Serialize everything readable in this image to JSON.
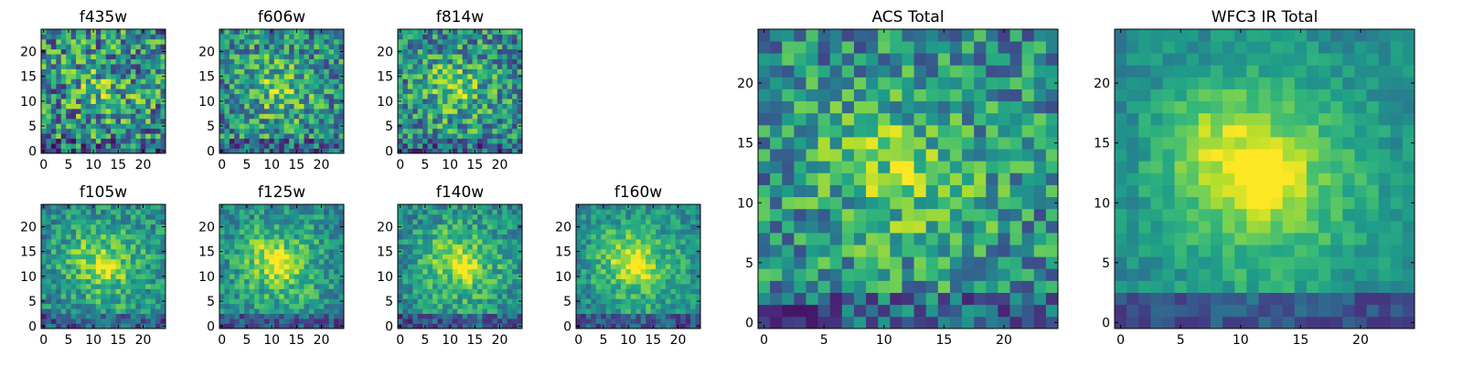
{
  "colormap": "viridis",
  "colors": {
    "frame": "#000000",
    "background": "#ffffff",
    "low": "#440154",
    "mid": "#21918c",
    "high": "#fde725"
  },
  "chart_data": [
    {
      "type": "heatmap",
      "title": "f435w",
      "grid": 25,
      "peak": [
        13,
        12
      ],
      "brightness": 0.35,
      "noise": 0.55,
      "seed": 11,
      "xticks": [
        0,
        5,
        10,
        15,
        20
      ],
      "yticks": [
        0,
        5,
        10,
        15,
        20
      ],
      "xlim": [
        0,
        25
      ],
      "ylim": [
        0,
        25
      ]
    },
    {
      "type": "heatmap",
      "title": "f606w",
      "grid": 25,
      "peak": [
        12,
        12
      ],
      "brightness": 0.5,
      "noise": 0.45,
      "seed": 23,
      "xticks": [
        0,
        5,
        10,
        15,
        20
      ],
      "yticks": [
        0,
        5,
        10,
        15,
        20
      ],
      "xlim": [
        0,
        25
      ],
      "ylim": [
        0,
        25
      ]
    },
    {
      "type": "heatmap",
      "title": "f814w",
      "grid": 25,
      "peak": [
        12,
        12
      ],
      "brightness": 0.5,
      "noise": 0.45,
      "seed": 37,
      "xticks": [
        0,
        5,
        10,
        15,
        20
      ],
      "yticks": [
        0,
        5,
        10,
        15,
        20
      ],
      "xlim": [
        0,
        25
      ],
      "ylim": [
        0,
        25
      ]
    },
    {
      "type": "heatmap",
      "title": "f105w",
      "grid": 25,
      "peak": [
        13,
        12
      ],
      "brightness": 0.75,
      "noise": 0.3,
      "seed": 41,
      "xticks": [
        0,
        5,
        10,
        15,
        20
      ],
      "yticks": [
        0,
        5,
        10,
        15,
        20
      ],
      "xlim": [
        0,
        25
      ],
      "ylim": [
        0,
        25
      ]
    },
    {
      "type": "heatmap",
      "title": "f125w",
      "grid": 25,
      "peak": [
        12,
        12
      ],
      "brightness": 0.8,
      "noise": 0.28,
      "seed": 53,
      "xticks": [
        0,
        5,
        10,
        15,
        20
      ],
      "yticks": [
        0,
        5,
        10,
        15,
        20
      ],
      "xlim": [
        0,
        25
      ],
      "ylim": [
        0,
        25
      ]
    },
    {
      "type": "heatmap",
      "title": "f140w",
      "grid": 25,
      "peak": [
        13,
        12
      ],
      "brightness": 0.8,
      "noise": 0.28,
      "seed": 67,
      "xticks": [
        0,
        5,
        10,
        15,
        20
      ],
      "yticks": [
        0,
        5,
        10,
        15,
        20
      ],
      "xlim": [
        0,
        25
      ],
      "ylim": [
        0,
        25
      ]
    },
    {
      "type": "heatmap",
      "title": "f160w",
      "grid": 25,
      "peak": [
        12,
        12
      ],
      "brightness": 0.85,
      "noise": 0.25,
      "seed": 79,
      "xticks": [
        0,
        5,
        10,
        15,
        20
      ],
      "yticks": [
        0,
        5,
        10,
        15,
        20
      ],
      "xlim": [
        0,
        25
      ],
      "ylim": [
        0,
        25
      ]
    },
    {
      "type": "heatmap",
      "title": "ACS Total",
      "grid": 25,
      "peak": [
        12,
        12
      ],
      "brightness": 0.55,
      "noise": 0.4,
      "seed": 97,
      "xticks": [
        0,
        5,
        10,
        15,
        20
      ],
      "yticks": [
        0,
        5,
        10,
        15,
        20
      ],
      "xlim": [
        0,
        25
      ],
      "ylim": [
        0,
        25
      ]
    },
    {
      "type": "heatmap",
      "title": "WFC3 IR Total",
      "grid": 25,
      "peak": [
        12,
        12
      ],
      "brightness": 1.0,
      "noise": 0.15,
      "seed": 113,
      "xticks": [
        0,
        5,
        10,
        15,
        20
      ],
      "yticks": [
        0,
        5,
        10,
        15,
        20
      ],
      "xlim": [
        0,
        25
      ],
      "ylim": [
        0,
        25
      ]
    }
  ]
}
